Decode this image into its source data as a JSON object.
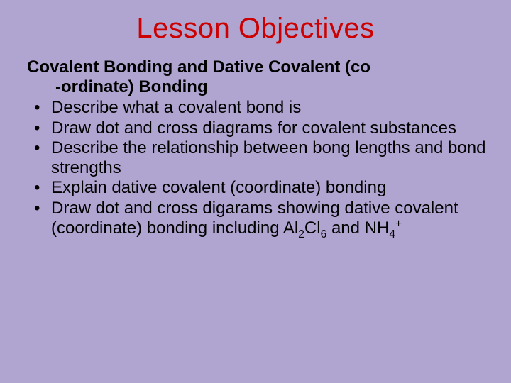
{
  "background_color": "#b0a5d0",
  "title_color": "#cc0000",
  "text_color": "#000000",
  "title_fontsize": 40,
  "body_fontsize": 24,
  "title": "Lesson Objectives",
  "subheading_line1": "Covalent Bonding and Dative Covalent (co",
  "subheading_line2": "-ordinate) Bonding",
  "bullets": [
    "Describe what a covalent bond is",
    "Draw dot and cross diagrams for covalent substances",
    "Describe the relationship between bong lengths and bond strengths",
    "Explain dative covalent (coordinate) bonding"
  ],
  "bullet5_prefix": "Draw dot and cross digarams showing dative covalent (coordinate) bonding including Al",
  "bullet5_sub1": "2",
  "bullet5_mid1": "Cl",
  "bullet5_sub2": "6",
  "bullet5_mid2": " and NH",
  "bullet5_sub3": "4",
  "bullet5_sup": "+"
}
